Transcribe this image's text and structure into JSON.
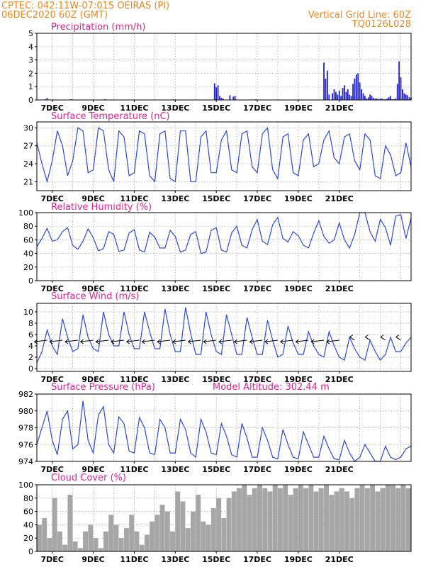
{
  "header": {
    "left_line1": "CPTEC:   042:11W-07:01S   OEIRAS (PI)",
    "left_line2": "06DEC2020 60Z (GMT)",
    "right_line1": "Vertical Grid Line: 60Z",
    "right_line2": "TQ0126L028"
  },
  "colors": {
    "header": "#e8871e",
    "panel_title": "#e0238f",
    "series_line": "#2a48e0",
    "precip_bar": "#1f1fdc",
    "cloud_fill": "#a6a6a6"
  },
  "chart_data": [
    {
      "type": "bar",
      "title": "Precipitation (mm/h)",
      "x_ticks": [
        "7DEC",
        "9DEC",
        "11DEC",
        "13DEC",
        "15DEC",
        "17DEC",
        "19DEC",
        "21DEC"
      ],
      "ylim": [
        0,
        5
      ],
      "y_ticks": [
        0,
        1,
        2,
        3,
        4,
        5
      ],
      "grid": true,
      "x_unit": "hours since 06DEC2020 06Z",
      "x": [
        10,
        12,
        40,
        80,
        160,
        208,
        210,
        212,
        214,
        216,
        218,
        226,
        230,
        232,
        256,
        336,
        338,
        340,
        342,
        346,
        348,
        350,
        352,
        354,
        356,
        358,
        360,
        362,
        364,
        366,
        368,
        370,
        372,
        374,
        376,
        378,
        380,
        382,
        384,
        386,
        388,
        390,
        392,
        394,
        396,
        398,
        400,
        402,
        404,
        406,
        408,
        410,
        412,
        414,
        416,
        418,
        420,
        422,
        424,
        426,
        428,
        430,
        432,
        434,
        436,
        438
      ],
      "values": [
        0.05,
        0.15,
        0.05,
        0.05,
        0.05,
        1.25,
        0.95,
        1.1,
        0.3,
        0.15,
        0.1,
        0.35,
        0.25,
        0.3,
        0.05,
        2.8,
        1.6,
        2.2,
        0.4,
        0.5,
        0.8,
        0.6,
        0.4,
        0.7,
        0.3,
        0.9,
        1.1,
        0.6,
        0.8,
        0.4,
        0.3,
        1.2,
        1.6,
        1.9,
        2.0,
        1.3,
        0.8,
        0.5,
        0.3,
        0.1,
        0.2,
        0.4,
        0.3,
        0.15,
        0.1,
        0.1,
        0.05,
        0.1,
        0.1,
        0.05,
        0.05,
        0.1,
        0.2,
        0.3,
        0.05,
        0.05,
        0.1,
        1.2,
        2.9,
        1.7,
        0.8,
        0.5,
        0.4,
        0.35,
        0.2,
        0.15
      ]
    },
    {
      "type": "line",
      "title": "Surface Temperature (nC)",
      "x_ticks": [
        "7DEC",
        "9DEC",
        "11DEC",
        "13DEC",
        "15DEC",
        "17DEC",
        "19DEC",
        "21DEC"
      ],
      "ylim": [
        19.5,
        31
      ],
      "y_ticks": [
        21,
        24,
        27,
        30
      ],
      "grid": true,
      "x_unit": "hours since 06DEC2020 06Z",
      "x": [
        0,
        6,
        12,
        18,
        24,
        30,
        36,
        42,
        48,
        54,
        60,
        66,
        72,
        78,
        84,
        90,
        96,
        102,
        108,
        114,
        120,
        126,
        132,
        138,
        144,
        150,
        156,
        162,
        168,
        174,
        180,
        186,
        192,
        198,
        204,
        210,
        216,
        222,
        228,
        234,
        240,
        246,
        252,
        258,
        264,
        270,
        276,
        282,
        288,
        294,
        300,
        306,
        312,
        318,
        324,
        330,
        336,
        342,
        348,
        354,
        360,
        366,
        372,
        378,
        384,
        390,
        396,
        402,
        408,
        414,
        420,
        426,
        432,
        438
      ],
      "values": [
        27.5,
        24,
        21,
        24.5,
        29.5,
        27,
        22,
        24.5,
        30,
        29.5,
        22.5,
        23,
        30,
        29.5,
        23,
        21,
        29.5,
        28.5,
        22,
        22.5,
        29.5,
        29,
        22,
        21,
        29,
        29.5,
        21.5,
        21,
        29.5,
        29.5,
        21,
        21,
        28.5,
        29.5,
        22.5,
        22.5,
        28,
        29.5,
        23,
        22.5,
        29,
        29.5,
        23.5,
        22.5,
        29,
        30,
        23,
        21.5,
        28.5,
        29,
        22.5,
        22,
        28,
        29,
        23.5,
        24,
        28,
        29.5,
        25,
        24,
        28.5,
        29,
        24.5,
        23,
        29,
        28,
        22,
        21.5,
        27,
        25.5,
        22,
        22.5,
        27.5,
        23.5
      ]
    },
    {
      "type": "line",
      "title": "Relative Humidity (%)",
      "x_ticks": [
        "7DEC",
        "9DEC",
        "11DEC",
        "13DEC",
        "15DEC",
        "17DEC",
        "19DEC",
        "21DEC"
      ],
      "ylim": [
        0,
        100
      ],
      "y_ticks": [
        0,
        20,
        40,
        60,
        80,
        100
      ],
      "grid": true,
      "x_unit": "hours since 06DEC2020 06Z",
      "x": [
        0,
        6,
        12,
        18,
        24,
        30,
        36,
        42,
        48,
        54,
        60,
        66,
        72,
        78,
        84,
        90,
        96,
        102,
        108,
        114,
        120,
        126,
        132,
        138,
        144,
        150,
        156,
        162,
        168,
        174,
        180,
        186,
        192,
        198,
        204,
        210,
        216,
        222,
        228,
        234,
        240,
        246,
        252,
        258,
        264,
        270,
        276,
        282,
        288,
        294,
        300,
        306,
        312,
        318,
        324,
        330,
        336,
        342,
        348,
        354,
        360,
        366,
        372,
        378,
        384,
        390,
        396,
        402,
        408,
        414,
        420,
        426,
        432,
        438
      ],
      "values": [
        50,
        62,
        77,
        58,
        60,
        72,
        78,
        52,
        46,
        58,
        76,
        63,
        44,
        47,
        72,
        68,
        43,
        45,
        70,
        75,
        45,
        42,
        71,
        64,
        48,
        48,
        74,
        65,
        42,
        45,
        68,
        72,
        40,
        42,
        74,
        78,
        45,
        42,
        70,
        80,
        52,
        48,
        75,
        90,
        58,
        53,
        82,
        93,
        62,
        57,
        72,
        66,
        52,
        48,
        70,
        88,
        65,
        55,
        60,
        85,
        60,
        48,
        68,
        100,
        100,
        72,
        58,
        90,
        78,
        52,
        95,
        97,
        62,
        92
      ]
    },
    {
      "type": "line",
      "title": "Surface Wind (m/s)",
      "x_ticks": [
        "7DEC",
        "9DEC",
        "11DEC",
        "13DEC",
        "15DEC",
        "17DEC",
        "19DEC",
        "21DEC"
      ],
      "ylim": [
        -0.5,
        11.5
      ],
      "y_ticks": [
        0,
        2,
        4,
        6,
        8,
        10
      ],
      "grid": true,
      "x_unit": "hours since 06DEC2020 06Z",
      "x": [
        0,
        6,
        12,
        18,
        24,
        30,
        36,
        42,
        48,
        54,
        60,
        66,
        72,
        78,
        84,
        90,
        96,
        102,
        108,
        114,
        120,
        126,
        132,
        138,
        144,
        150,
        156,
        162,
        168,
        174,
        180,
        186,
        192,
        198,
        204,
        210,
        216,
        222,
        228,
        234,
        240,
        246,
        252,
        258,
        264,
        270,
        276,
        282,
        288,
        294,
        300,
        306,
        312,
        318,
        324,
        330,
        336,
        342,
        348,
        354,
        360,
        366,
        372,
        378,
        384,
        390,
        396,
        402,
        408,
        414,
        420,
        426,
        432,
        438
      ],
      "values": [
        1,
        3,
        6.8,
        4,
        2.5,
        8.8,
        5.5,
        3,
        3.5,
        9.5,
        5.5,
        3.5,
        3,
        10,
        6,
        4,
        4,
        10,
        6,
        3.5,
        3.5,
        10,
        6.5,
        3.5,
        3.5,
        10.5,
        6,
        3,
        3,
        10.8,
        6.2,
        2.5,
        2.5,
        10,
        6,
        3,
        2.5,
        9.5,
        6,
        2.5,
        2.5,
        9,
        5.5,
        2.5,
        2.5,
        8.5,
        5,
        2,
        2.5,
        7.5,
        4.5,
        2.5,
        2.5,
        6.5,
        4,
        2.5,
        2,
        6.5,
        4,
        2,
        1.5,
        5.5,
        3.5,
        2,
        1.5,
        5,
        3,
        1.5,
        2.5,
        5.5,
        3,
        3,
        4.5,
        5.5
      ]
    },
    {
      "type": "line",
      "title": "Surface Pressure (hPa)",
      "annotation": "Model Altitude: 302.44 m",
      "x_ticks": [
        "7DEC",
        "9DEC",
        "11DEC",
        "13DEC",
        "15DEC",
        "17DEC",
        "19DEC",
        "21DEC"
      ],
      "ylim": [
        974,
        982
      ],
      "y_ticks": [
        974,
        976,
        978,
        980,
        982
      ],
      "grid": true,
      "x_unit": "hours since 06DEC2020 06Z",
      "x": [
        0,
        6,
        12,
        18,
        24,
        30,
        36,
        42,
        48,
        54,
        60,
        66,
        72,
        78,
        84,
        90,
        96,
        102,
        108,
        114,
        120,
        126,
        132,
        138,
        144,
        150,
        156,
        162,
        168,
        174,
        180,
        186,
        192,
        198,
        204,
        210,
        216,
        222,
        228,
        234,
        240,
        246,
        252,
        258,
        264,
        270,
        276,
        282,
        288,
        294,
        300,
        306,
        312,
        318,
        324,
        330,
        336,
        342,
        348,
        354,
        360,
        366,
        372,
        378,
        384,
        390,
        396,
        402,
        408,
        414,
        420,
        426,
        432,
        438
      ],
      "values": [
        976,
        978,
        980,
        976.5,
        974.8,
        979,
        980,
        975.5,
        976,
        981.2,
        976.5,
        975,
        979.5,
        980.5,
        976,
        975,
        979.3,
        978.5,
        975.2,
        975,
        979.2,
        978,
        975,
        974.8,
        979,
        978,
        975,
        975,
        979,
        977.8,
        975,
        974.5,
        979,
        977.5,
        975,
        974.8,
        978.5,
        977,
        974.8,
        974.5,
        978.5,
        976.8,
        974.5,
        974.5,
        978,
        976.5,
        974.5,
        974.3,
        977.8,
        976,
        974.5,
        974.3,
        977.5,
        976,
        974.5,
        974.5,
        977,
        975.5,
        974.3,
        974.2,
        976.5,
        975,
        974,
        974.5,
        976,
        975,
        974,
        974,
        975.8,
        974.5,
        974.2,
        974.5,
        975.5,
        975.8
      ]
    },
    {
      "type": "area",
      "title": "Cloud Cover (%)",
      "x_ticks": [
        "7DEC",
        "9DEC",
        "11DEC",
        "13DEC",
        "15DEC",
        "17DEC",
        "19DEC",
        "21DEC"
      ],
      "ylim": [
        0,
        100
      ],
      "y_ticks": [
        0,
        20,
        40,
        60,
        80,
        100
      ],
      "grid": true,
      "x_unit": "hours since 06DEC2020 06Z",
      "x": [
        0,
        6,
        12,
        18,
        24,
        30,
        36,
        42,
        48,
        54,
        60,
        66,
        72,
        78,
        84,
        90,
        96,
        102,
        108,
        114,
        120,
        126,
        132,
        138,
        144,
        150,
        156,
        162,
        168,
        174,
        180,
        186,
        192,
        198,
        204,
        210,
        216,
        222,
        228,
        234,
        240,
        246,
        252,
        258,
        264,
        270,
        276,
        282,
        288,
        294,
        300,
        306,
        312,
        318,
        324,
        330,
        336,
        342,
        348,
        354,
        360,
        366,
        372,
        378,
        384,
        390,
        396,
        402,
        408,
        414,
        420,
        426,
        432,
        438
      ],
      "values": [
        40,
        50,
        20,
        80,
        30,
        10,
        85,
        15,
        5,
        30,
        40,
        20,
        5,
        30,
        55,
        40,
        20,
        35,
        55,
        30,
        10,
        25,
        45,
        55,
        70,
        60,
        30,
        90,
        75,
        35,
        60,
        85,
        45,
        40,
        65,
        80,
        50,
        80,
        90,
        95,
        100,
        85,
        95,
        100,
        95,
        90,
        100,
        95,
        100,
        85,
        95,
        100,
        95,
        100,
        90,
        95,
        100,
        85,
        90,
        95,
        90,
        80,
        95,
        100,
        95,
        100,
        90,
        95,
        100,
        100,
        95,
        100,
        95,
        100
      ]
    }
  ]
}
